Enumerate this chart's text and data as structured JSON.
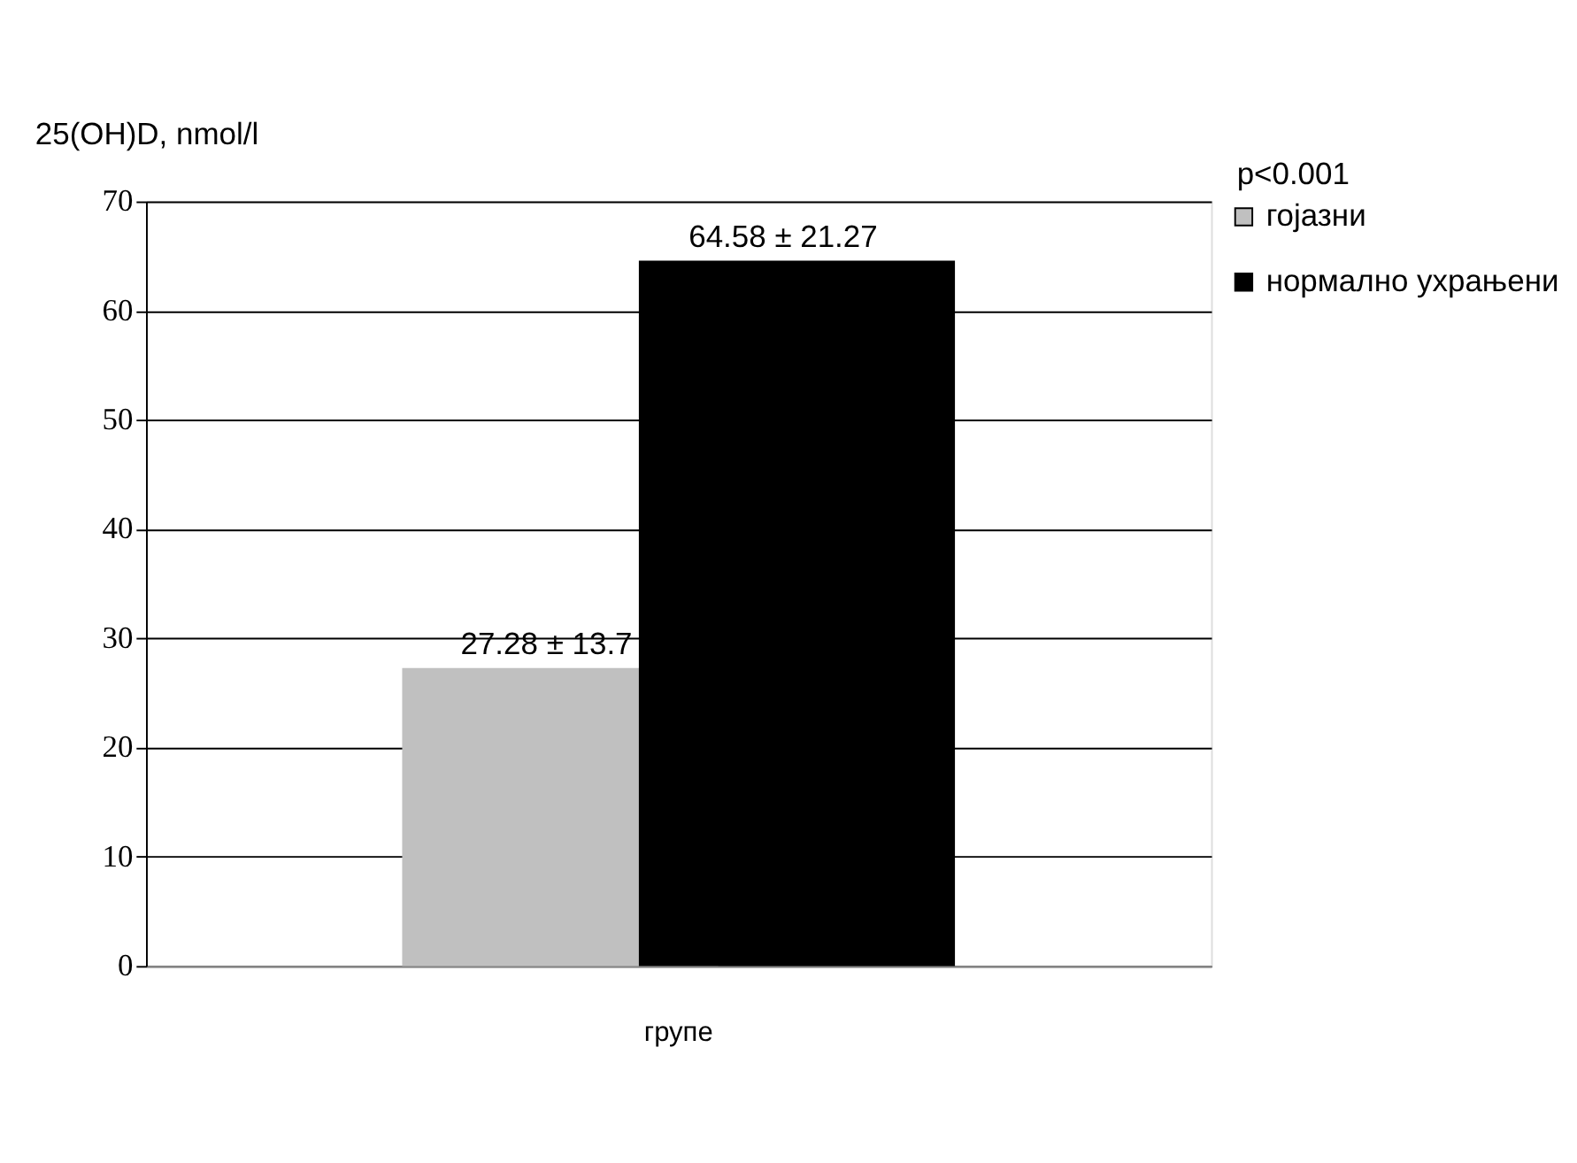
{
  "chart_data": {
    "type": "bar",
    "ylabel": "25(OH)D, nmol/l",
    "categories": [
      "групе"
    ],
    "series": [
      {
        "name": "гојазни",
        "color": "#c0c0c0",
        "values": [
          27.28
        ],
        "value_labels": [
          "27.28 ± 13.7"
        ]
      },
      {
        "name": "нормално ухрањени",
        "color": "#000000",
        "values": [
          64.58
        ],
        "value_labels": [
          "64.58 ± 21.27"
        ]
      }
    ],
    "ylim": [
      0,
      70
    ],
    "yticks": [
      0,
      10,
      20,
      30,
      40,
      50,
      60,
      70
    ],
    "grid": "y",
    "legend": "right",
    "annotations": [
      "p<0.001"
    ]
  }
}
